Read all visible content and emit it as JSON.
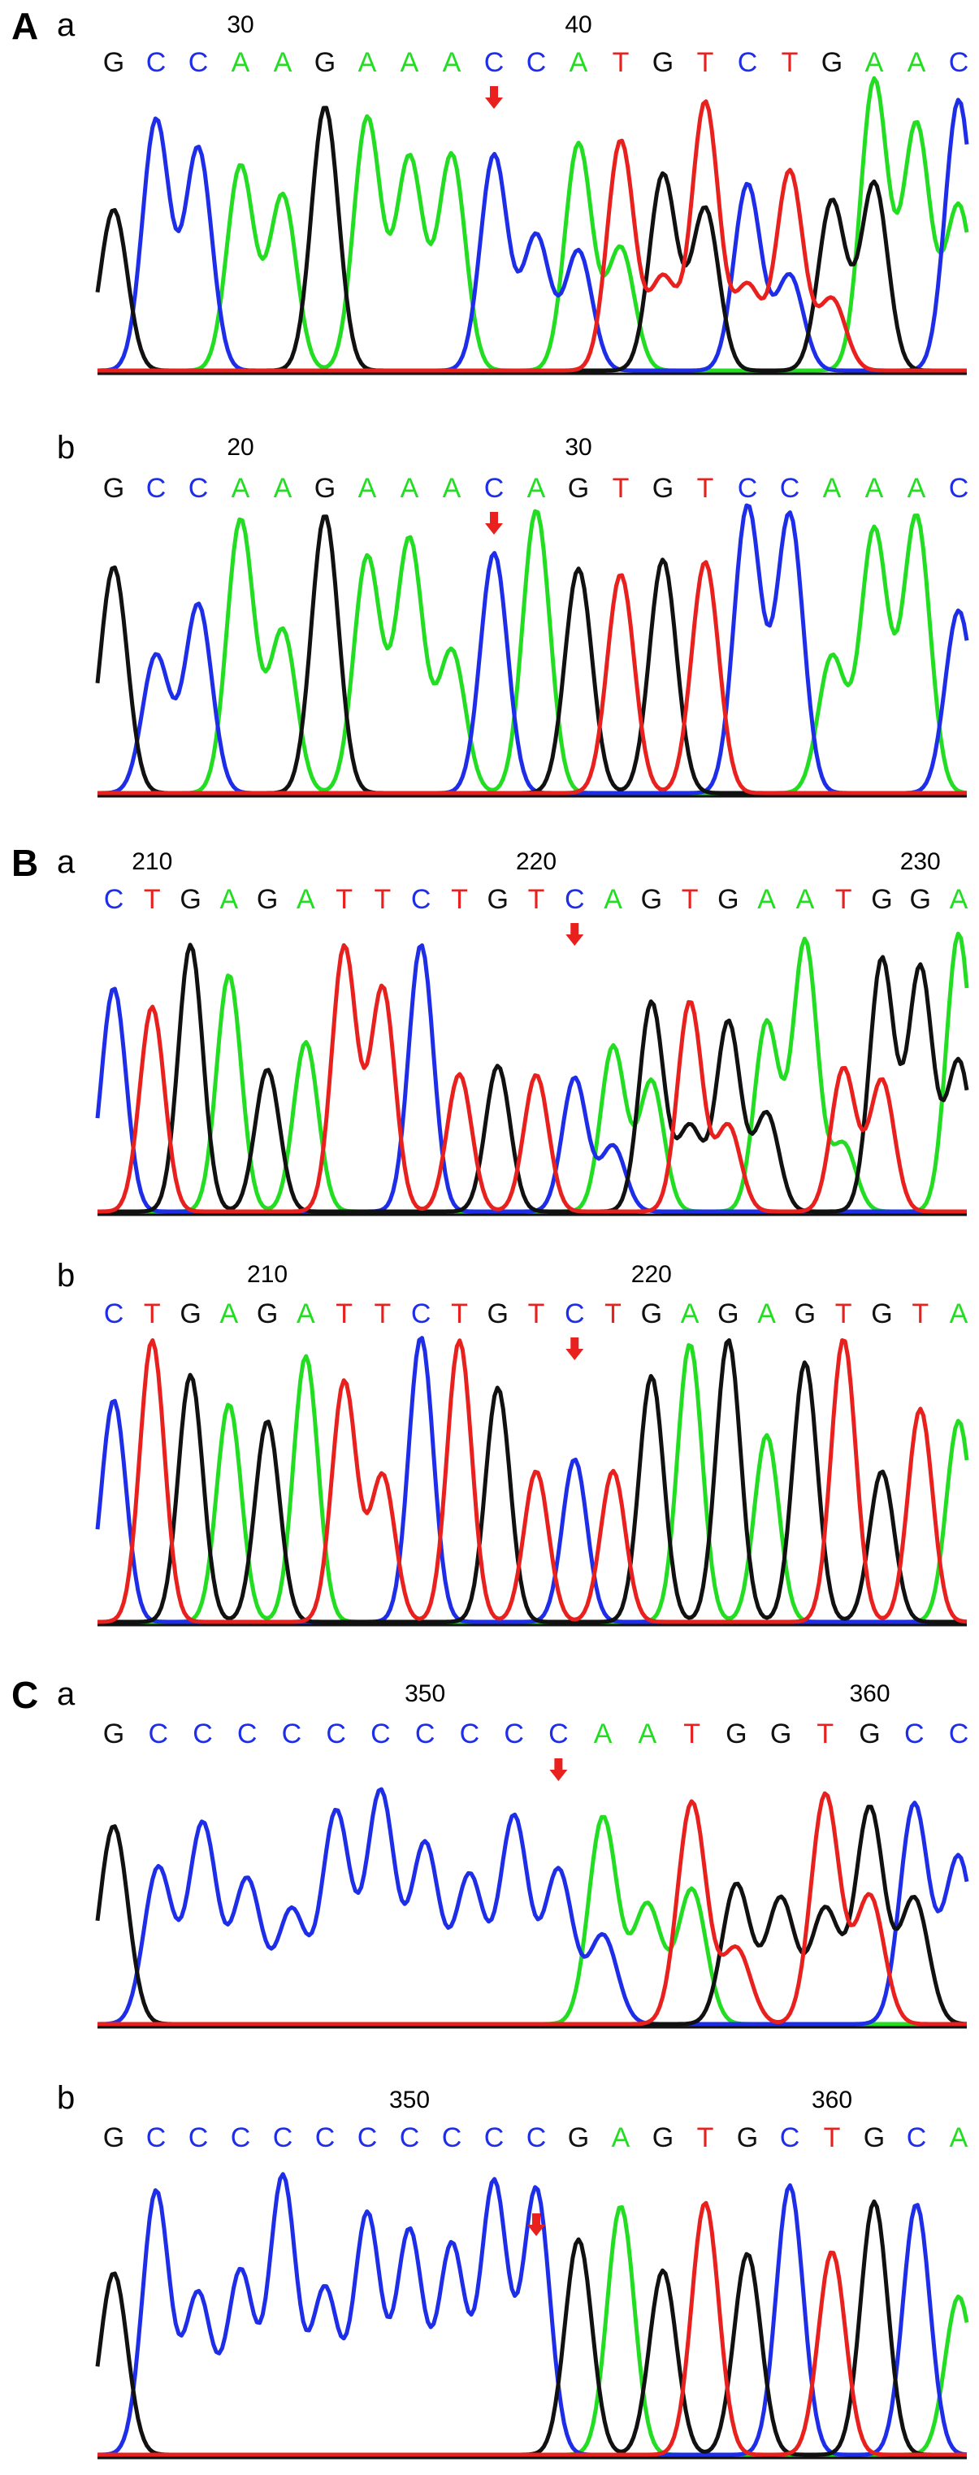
{
  "colors": {
    "A": "#22dd22",
    "C": "#1e2ee8",
    "G": "#111111",
    "T": "#e8211e",
    "arrow": "#e8211e",
    "axis": "#111111"
  },
  "chart_data": {
    "type": "chromatogram",
    "panels": [
      {
        "section": "A",
        "panel": "a",
        "position_labels": [
          {
            "label": "30",
            "index": 3
          },
          {
            "label": "40",
            "index": 11
          }
        ],
        "bases": [
          "G",
          "C",
          "C",
          "A",
          "A",
          "G",
          "A",
          "A",
          "A",
          "C",
          "C",
          "A",
          "T",
          "G",
          "T",
          "C",
          "T",
          "G",
          "A",
          "A",
          "C"
        ],
        "arrow_index": 9
      },
      {
        "section": "",
        "panel": "b",
        "position_labels": [
          {
            "label": "20",
            "index": 3
          },
          {
            "label": "30",
            "index": 11
          }
        ],
        "bases": [
          "G",
          "C",
          "C",
          "A",
          "A",
          "G",
          "A",
          "A",
          "A",
          "C",
          "A",
          "G",
          "T",
          "G",
          "T",
          "C",
          "C",
          "A",
          "A",
          "A",
          "C"
        ],
        "arrow_index": 9
      },
      {
        "section": "B",
        "panel": "a",
        "position_labels": [
          {
            "label": "210",
            "index": 1
          },
          {
            "label": "220",
            "index": 11
          },
          {
            "label": "230",
            "index": 21
          }
        ],
        "bases": [
          "C",
          "T",
          "G",
          "A",
          "G",
          "A",
          "T",
          "T",
          "C",
          "T",
          "G",
          "T",
          "C",
          "A",
          "G",
          "T",
          "G",
          "A",
          "A",
          "T",
          "G",
          "G",
          "A"
        ],
        "arrow_index": 12
      },
      {
        "section": "",
        "panel": "b",
        "position_labels": [
          {
            "label": "210",
            "index": 4
          },
          {
            "label": "220",
            "index": 14
          }
        ],
        "bases": [
          "C",
          "T",
          "G",
          "A",
          "G",
          "A",
          "T",
          "T",
          "C",
          "T",
          "G",
          "T",
          "C",
          "T",
          "G",
          "A",
          "G",
          "A",
          "G",
          "T",
          "G",
          "T",
          "A"
        ],
        "arrow_index": 12
      },
      {
        "section": "C",
        "panel": "a",
        "position_labels": [
          {
            "label": "350",
            "index": 7
          },
          {
            "label": "360",
            "index": 17
          }
        ],
        "bases": [
          "G",
          "C",
          "C",
          "C",
          "C",
          "C",
          "C",
          "C",
          "C",
          "C",
          "C",
          "A",
          "A",
          "T",
          "G",
          "G",
          "T",
          "G",
          "C",
          "C"
        ],
        "arrow_index": 10
      },
      {
        "section": "",
        "panel": "b",
        "position_labels": [
          {
            "label": "350",
            "index": 7
          },
          {
            "label": "360",
            "index": 17
          }
        ],
        "bases": [
          "G",
          "C",
          "C",
          "C",
          "C",
          "C",
          "C",
          "C",
          "C",
          "C",
          "C",
          "G",
          "A",
          "G",
          "T",
          "G",
          "C",
          "T",
          "G",
          "C",
          "A"
        ],
        "arrow_index": 10
      }
    ]
  }
}
